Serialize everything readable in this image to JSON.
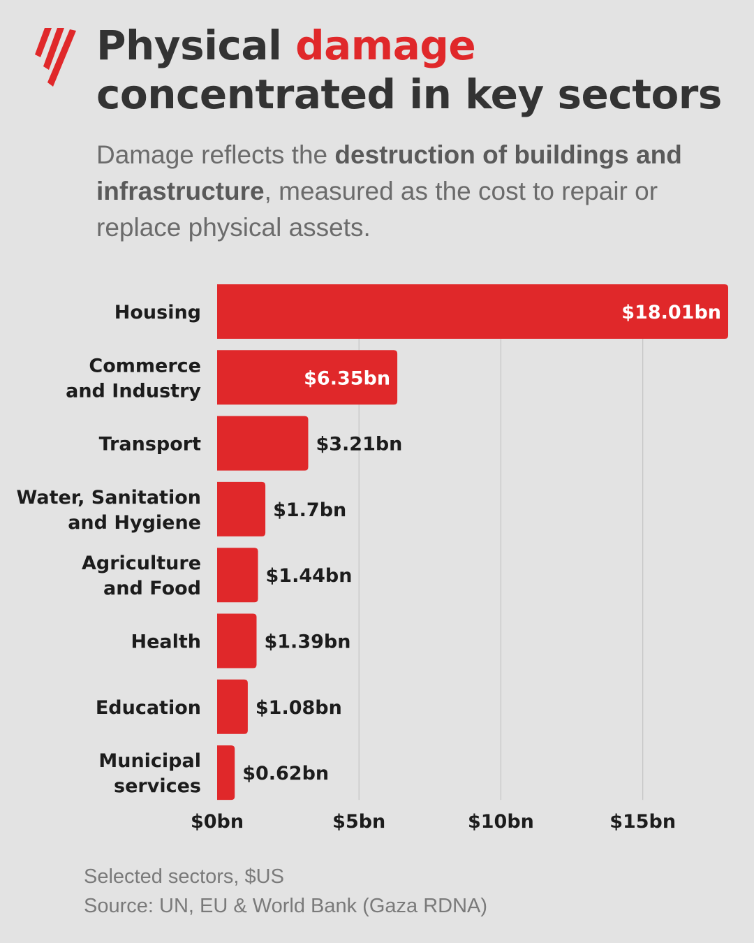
{
  "header": {
    "title_part1": "Physical ",
    "title_accent": "damage",
    "title_line2": "concentrated in key sectors",
    "subtitle_part1": "Damage reflects the ",
    "subtitle_bold": "destruction of buildings and infrastructure",
    "subtitle_part2": ", measured as the cost to repair or replace physical assets."
  },
  "colors": {
    "bar": "#e0282a",
    "accent": "#e0282a",
    "text": "#333333",
    "background": "#e3e3e3"
  },
  "chart_data": {
    "type": "bar",
    "orientation": "horizontal",
    "categories": [
      [
        "Housing"
      ],
      [
        "Commerce",
        "and Industry"
      ],
      [
        "Transport"
      ],
      [
        "Water, Sanitation",
        "and Hygiene"
      ],
      [
        "Agriculture",
        "and Food"
      ],
      [
        "Health"
      ],
      [
        "Education"
      ],
      [
        "Municipal",
        "services"
      ]
    ],
    "values": [
      18.01,
      6.35,
      3.21,
      1.7,
      1.44,
      1.39,
      1.08,
      0.62
    ],
    "value_labels": [
      "$18.01bn",
      "$6.35bn",
      "$3.21bn",
      "$1.7bn",
      "$1.44bn",
      "$1.39bn",
      "$1.08bn",
      "$0.62bn"
    ],
    "ticks": [
      0,
      5,
      10,
      15
    ],
    "tick_labels": [
      "$0bn",
      "$5bn",
      "$10bn",
      "$15bn"
    ],
    "xlim": [
      0,
      18.01
    ],
    "grid": true,
    "title": "Physical damage concentrated in key sectors"
  },
  "footer": {
    "note": "Selected sectors, $US",
    "source": "Source: UN, EU & World Bank (Gaza RDNA)"
  }
}
